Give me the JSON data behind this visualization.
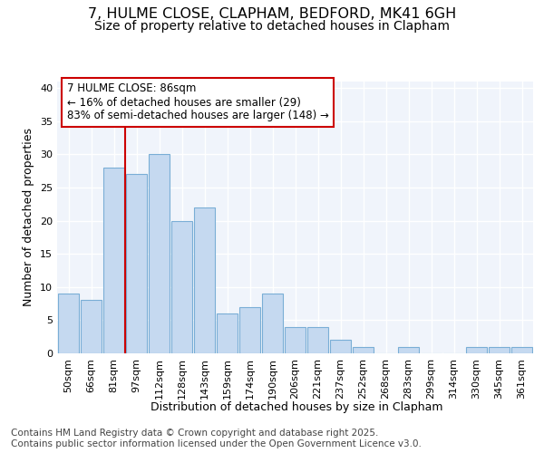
{
  "title_line1": "7, HULME CLOSE, CLAPHAM, BEDFORD, MK41 6GH",
  "title_line2": "Size of property relative to detached houses in Clapham",
  "xlabel": "Distribution of detached houses by size in Clapham",
  "ylabel": "Number of detached properties",
  "bar_labels": [
    "50sqm",
    "66sqm",
    "81sqm",
    "97sqm",
    "112sqm",
    "128sqm",
    "143sqm",
    "159sqm",
    "174sqm",
    "190sqm",
    "206sqm",
    "221sqm",
    "237sqm",
    "252sqm",
    "268sqm",
    "283sqm",
    "299sqm",
    "314sqm",
    "330sqm",
    "345sqm",
    "361sqm"
  ],
  "bar_values": [
    9,
    8,
    28,
    27,
    30,
    20,
    22,
    6,
    7,
    9,
    4,
    4,
    2,
    1,
    0,
    1,
    0,
    0,
    1,
    1,
    1
  ],
  "bar_color": "#c5d9f0",
  "bar_edge_color": "#7aaed6",
  "vline_x_index": 2,
  "vline_color": "#cc0000",
  "annotation_text": "7 HULME CLOSE: 86sqm\n← 16% of detached houses are smaller (29)\n83% of semi-detached houses are larger (148) →",
  "annotation_box_color": "#ffffff",
  "annotation_box_edge": "#cc0000",
  "ylim": [
    0,
    41
  ],
  "yticks": [
    0,
    5,
    10,
    15,
    20,
    25,
    30,
    35,
    40
  ],
  "bg_color": "#ffffff",
  "plot_bg_color": "#f0f4fb",
  "grid_color": "#ffffff",
  "footer_text": "Contains HM Land Registry data © Crown copyright and database right 2025.\nContains public sector information licensed under the Open Government Licence v3.0.",
  "title_fontsize": 11.5,
  "subtitle_fontsize": 10,
  "axis_label_fontsize": 9,
  "tick_fontsize": 8,
  "annotation_fontsize": 8.5,
  "footer_fontsize": 7.5
}
